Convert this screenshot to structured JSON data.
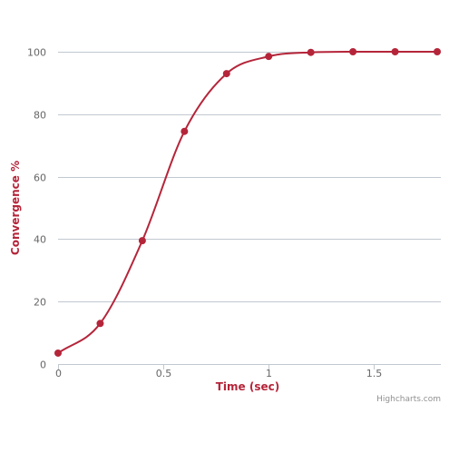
{
  "chart_data": {
    "type": "line",
    "title": "",
    "xlabel": "Time (sec)",
    "ylabel": "Convergence %",
    "xlim": [
      0,
      1.8
    ],
    "ylim": [
      0,
      100
    ],
    "x_ticks": [
      {
        "value": 0,
        "label": "0"
      },
      {
        "value": 0.5,
        "label": "0.5"
      },
      {
        "value": 1,
        "label": "1"
      },
      {
        "value": 1.5,
        "label": "1.5"
      }
    ],
    "y_ticks": [
      {
        "value": 0,
        "label": "0"
      },
      {
        "value": 20,
        "label": "20"
      },
      {
        "value": 40,
        "label": "40"
      },
      {
        "value": 60,
        "label": "60"
      },
      {
        "value": 80,
        "label": "80"
      },
      {
        "value": 100,
        "label": "100"
      }
    ],
    "grid": true,
    "legend": false,
    "series": [
      {
        "color": "#b5253a",
        "smooth": true,
        "x": [
          0,
          0.2,
          0.4,
          0.6,
          0.8,
          1.0,
          1.2,
          1.4,
          1.6,
          1.8
        ],
        "y": [
          3.5,
          13,
          39.5,
          74.5,
          93,
          98.5,
          99.8,
          100,
          100,
          100
        ]
      }
    ]
  },
  "credits": "Highcharts.com"
}
